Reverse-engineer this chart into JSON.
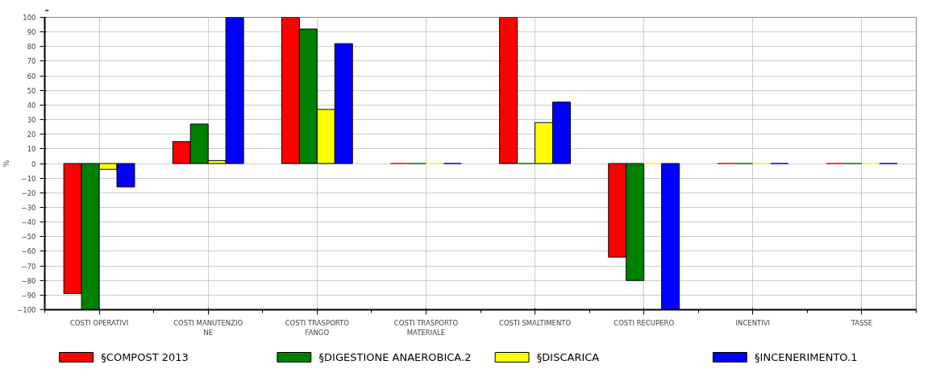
{
  "chart_data": {
    "type": "bar",
    "title": "-",
    "ylabel": "%",
    "categories": [
      "COSTI OPERATIVI",
      "COSTI MANUTENZIO\nNE",
      "COSTI TRASPORTO\nFANGO",
      "COSTI TRASPORTO\nMATERIALE",
      "COSTI SMALTIMENTO",
      "COSTI RECUPERO",
      "INCENTIVI",
      "TASSE"
    ],
    "series": [
      {
        "name": "§COMPOST 2013",
        "color": "#ff0000",
        "values": [
          -89,
          15,
          100,
          0,
          100,
          -64,
          0,
          0
        ]
      },
      {
        "name": "§DIGESTIONE ANAEROBICA.2",
        "color": "#008000",
        "values": [
          -100,
          27,
          92,
          0,
          0,
          -80,
          0,
          0
        ]
      },
      {
        "name": "§DISCARICA",
        "color": "#ffff00",
        "values": [
          -4,
          2,
          37,
          0,
          28,
          0,
          0,
          0
        ]
      },
      {
        "name": "§INCENERIMENTO.1",
        "color": "#0000ff",
        "values": [
          -16,
          100,
          82,
          0,
          42,
          -100,
          0,
          0
        ]
      }
    ],
    "ylim": [
      -100,
      100
    ],
    "yticks": [
      -100,
      -90,
      -80,
      -70,
      -60,
      -50,
      -40,
      -30,
      -20,
      -10,
      0,
      10,
      20,
      30,
      40,
      50,
      60,
      70,
      80,
      90,
      100
    ],
    "grid": true,
    "legend": "bottom"
  }
}
